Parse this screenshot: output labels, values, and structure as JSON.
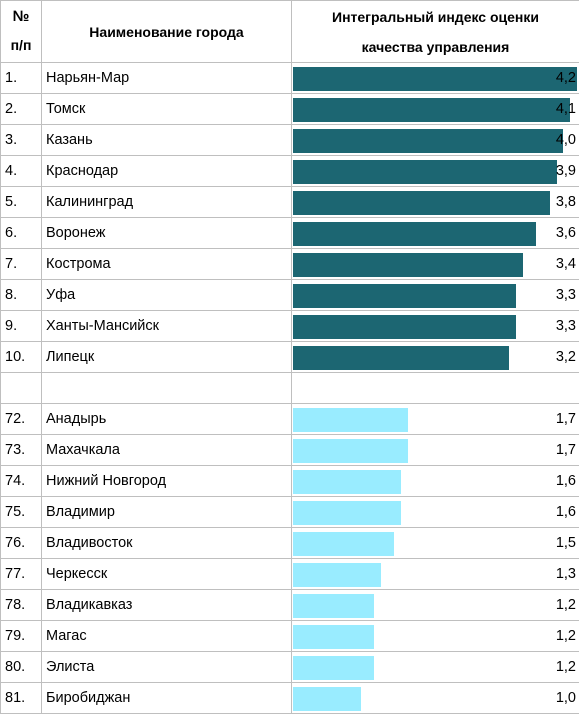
{
  "header": {
    "num_line1": "№",
    "num_line2": "п/п",
    "city": "Наименование города",
    "index_line1": "Интегральный индекс оценки",
    "index_line2": "качества управления"
  },
  "colors": {
    "top": "#1c6672",
    "bottom": "#99ecff",
    "grid": "#bfbfbf"
  },
  "chart_data": {
    "type": "bar",
    "orientation": "horizontal",
    "xlim": [
      0,
      4.2
    ],
    "series": [
      {
        "rows": [
          {
            "num": "1.",
            "city": "Нарьян-Мар",
            "label": "4,2",
            "value": 4.2
          },
          {
            "num": "2.",
            "city": "Томск",
            "label": "4,1",
            "value": 4.1
          },
          {
            "num": "3.",
            "city": "Казань",
            "label": "4,0",
            "value": 4.0
          },
          {
            "num": "4.",
            "city": "Краснодар",
            "label": "3,9",
            "value": 3.9
          },
          {
            "num": "5.",
            "city": "Калининград",
            "label": "3,8",
            "value": 3.8
          },
          {
            "num": "6.",
            "city": "Воронеж",
            "label": "3,6",
            "value": 3.6
          },
          {
            "num": "7.",
            "city": "Кострома",
            "label": "3,4",
            "value": 3.4
          },
          {
            "num": "8.",
            "city": "Уфа",
            "label": "3,3",
            "value": 3.3
          },
          {
            "num": "9.",
            "city": "Ханты-Мансийск",
            "label": "3,3",
            "value": 3.3
          },
          {
            "num": "10.",
            "city": "Липецк",
            "label": "3,2",
            "value": 3.2
          }
        ]
      },
      {
        "rows": [
          {
            "num": "72.",
            "city": "Анадырь",
            "label": "1,7",
            "value": 1.7
          },
          {
            "num": "73.",
            "city": "Махачкала",
            "label": "1,7",
            "value": 1.7
          },
          {
            "num": "74.",
            "city": "Нижний Новгород",
            "label": "1,6",
            "value": 1.6
          },
          {
            "num": "75.",
            "city": "Владимир",
            "label": "1,6",
            "value": 1.6
          },
          {
            "num": "76.",
            "city": "Владивосток",
            "label": "1,5",
            "value": 1.5
          },
          {
            "num": "77.",
            "city": "Черкесск",
            "label": "1,3",
            "value": 1.3
          },
          {
            "num": "78.",
            "city": "Владикавказ",
            "label": "1,2",
            "value": 1.2
          },
          {
            "num": "79.",
            "city": "Магас",
            "label": "1,2",
            "value": 1.2
          },
          {
            "num": "80.",
            "city": "Элиста",
            "label": "1,2",
            "value": 1.2
          },
          {
            "num": "81.",
            "city": "Биробиджан",
            "label": "1,0",
            "value": 1.0
          }
        ]
      }
    ]
  }
}
